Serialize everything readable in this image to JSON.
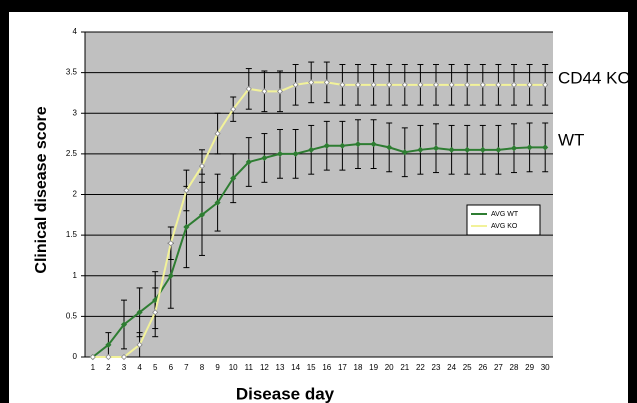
{
  "chart_data": {
    "type": "line",
    "y_label": "Clinical disease score",
    "x_label": "Disease day",
    "categories": [
      "1",
      "2",
      "3",
      "4",
      "5",
      "6",
      "7",
      "8",
      "9",
      "10",
      "11",
      "12",
      "13",
      "14",
      "15",
      "16",
      "17",
      "18",
      "19",
      "20",
      "21",
      "22",
      "23",
      "24",
      "25",
      "26",
      "27",
      "28",
      "29",
      "30"
    ],
    "ylim": [
      0,
      4
    ],
    "yticks": [
      0,
      0.5,
      1,
      1.5,
      2,
      2.5,
      3,
      3.5,
      4
    ],
    "grid": true,
    "series": [
      {
        "name": "AVG WT",
        "color": "#2e7d32",
        "values": [
          0,
          0.15,
          0.4,
          0.55,
          0.7,
          1.0,
          1.6,
          1.75,
          1.9,
          2.2,
          2.4,
          2.45,
          2.5,
          2.5,
          2.55,
          2.6,
          2.6,
          2.62,
          2.62,
          2.58,
          2.52,
          2.55,
          2.57,
          2.55,
          2.55,
          2.55,
          2.55,
          2.57,
          2.58,
          2.58
        ],
        "errors": [
          0,
          0.15,
          0.3,
          0.3,
          0.35,
          0.4,
          0.5,
          0.5,
          0.35,
          0.3,
          0.3,
          0.3,
          0.3,
          0.3,
          0.3,
          0.3,
          0.3,
          0.3,
          0.3,
          0.3,
          0.3,
          0.3,
          0.3,
          0.3,
          0.3,
          0.3,
          0.3,
          0.3,
          0.3,
          0.3
        ]
      },
      {
        "name": "AVG KO",
        "color": "#f2f29a",
        "values": [
          0,
          0,
          0,
          0.15,
          0.55,
          1.4,
          2.05,
          2.35,
          2.75,
          3.05,
          3.3,
          3.27,
          3.27,
          3.35,
          3.38,
          3.38,
          3.35,
          3.35,
          3.35,
          3.35,
          3.35,
          3.35,
          3.35,
          3.35,
          3.35,
          3.35,
          3.35,
          3.35,
          3.35,
          3.35
        ],
        "errors": [
          0,
          0,
          0,
          0.15,
          0.3,
          0.2,
          0.25,
          0.2,
          0.25,
          0.15,
          0.25,
          0.25,
          0.25,
          0.25,
          0.25,
          0.25,
          0.25,
          0.25,
          0.25,
          0.25,
          0.25,
          0.25,
          0.25,
          0.25,
          0.25,
          0.25,
          0.25,
          0.25,
          0.25,
          0.25
        ]
      }
    ],
    "annotations": [
      "CD44 KO",
      "WT"
    ],
    "legend_position": "right"
  }
}
